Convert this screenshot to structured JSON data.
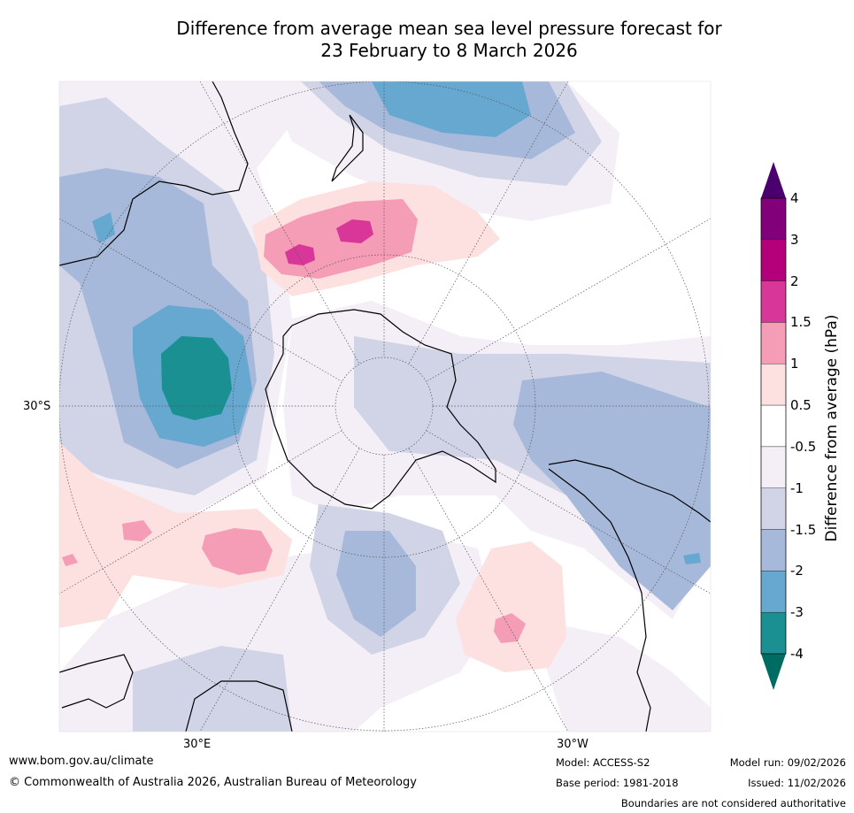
{
  "title": {
    "line1": "Difference from average mean sea level pressure forecast for",
    "line2": "23 February to 8 March 2026"
  },
  "map": {
    "lat_label": "30°S",
    "lon_labels": [
      "30°E",
      "30°W"
    ]
  },
  "colorbar": {
    "title": "Difference from average (hPa)",
    "ticks": [
      "4",
      "3",
      "2",
      "1.5",
      "1",
      "0.5",
      "-0.5",
      "-1",
      "-1.5",
      "-2",
      "-3",
      "-4"
    ],
    "colors": [
      "#4b0070",
      "#82007a",
      "#b3007a",
      "#d9369a",
      "#f59cb6",
      "#fde0e0",
      "#ffffff",
      "#f4eef6",
      "#d1d4e6",
      "#a7b9da",
      "#66a8cf",
      "#1a9092",
      "#006b60"
    ]
  },
  "footer": {
    "website": "www.bom.gov.au/climate",
    "copyright": "© Commonwealth of Australia 2026, Australian Bureau of Meteorology",
    "model": "Model: ACCESS-S2",
    "base_period": "Base period: 1981-2018",
    "model_run": "Model run: 09/02/2026",
    "issued": "Issued: 11/02/2026",
    "disclaimer": "Boundaries are not considered authoritative"
  }
}
